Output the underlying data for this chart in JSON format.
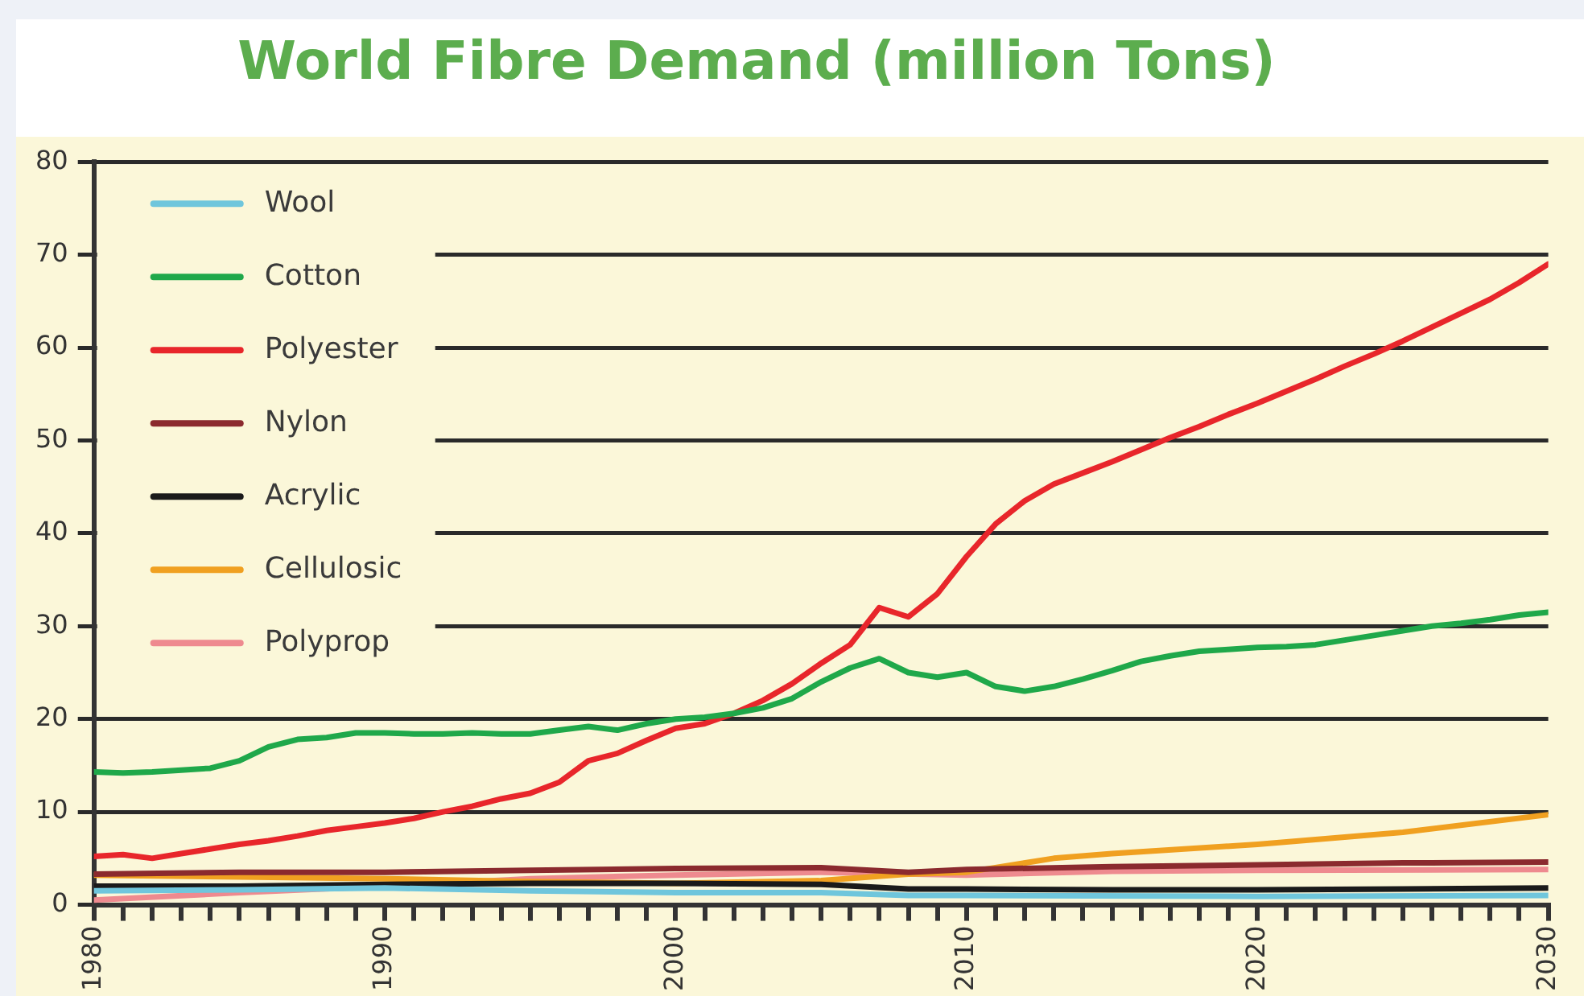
{
  "chart_data": {
    "type": "line",
    "title": "World Fibre Demand (million Tons)",
    "x": [
      1980,
      1981,
      1982,
      1983,
      1984,
      1985,
      1986,
      1987,
      1988,
      1989,
      1990,
      1991,
      1992,
      1993,
      1994,
      1995,
      1996,
      1997,
      1998,
      1999,
      2000,
      2001,
      2002,
      2003,
      2004,
      2005,
      2006,
      2007,
      2008,
      2009,
      2010,
      2011,
      2012,
      2013,
      2014,
      2015,
      2016,
      2017,
      2018,
      2019,
      2020,
      2021,
      2022,
      2023,
      2024,
      2025,
      2026,
      2027,
      2028,
      2029,
      2030
    ],
    "series": [
      {
        "name": "Wool",
        "color": "#6fc6dc",
        "x": [
          1980,
          1985,
          1990,
          1995,
          2000,
          2005,
          2008,
          2010,
          2020,
          2030
        ],
        "values": [
          1.5,
          1.6,
          1.8,
          1.5,
          1.3,
          1.3,
          1.0,
          1.0,
          0.9,
          1.0
        ]
      },
      {
        "name": "Cotton",
        "color": "#1fa84a",
        "values": [
          14.3,
          14.2,
          14.3,
          14.5,
          14.7,
          15.5,
          17,
          17.8,
          18,
          18.5,
          18.5,
          18.4,
          18.4,
          18.5,
          18.4,
          18.4,
          18.8,
          19.2,
          18.8,
          19.5,
          20,
          20.2,
          20.6,
          21.2,
          22.2,
          24,
          25.5,
          26.5,
          25,
          24.5,
          25,
          23.5,
          23,
          23.5,
          24.3,
          25.2,
          26.2,
          26.8,
          27.3,
          27.5,
          27.7,
          27.8,
          28,
          28.5,
          29,
          29.5,
          30,
          30.3,
          30.7,
          31.2,
          31.5
        ]
      },
      {
        "name": "Polyester",
        "color": "#e8262b",
        "values": [
          5.2,
          5.4,
          5,
          5.5,
          6,
          6.5,
          6.9,
          7.4,
          8,
          8.4,
          8.8,
          9.3,
          10,
          10.6,
          11.4,
          12,
          13.2,
          15.5,
          16.3,
          17.7,
          19,
          19.5,
          20.6,
          22,
          23.8,
          26,
          28,
          32,
          31,
          33.5,
          37.5,
          41,
          43.5,
          45.3,
          46.5,
          47.7,
          49,
          50.3,
          51.5,
          52.8,
          54,
          55.3,
          56.6,
          58,
          59.3,
          60.7,
          62.2,
          63.7,
          65.2,
          67,
          69
        ]
      },
      {
        "name": "Nylon",
        "color": "#8b2a2e",
        "x": [
          1980,
          1985,
          1990,
          1995,
          2000,
          2005,
          2008,
          2010,
          2015,
          2020,
          2025,
          2030
        ],
        "values": [
          3.3,
          3.5,
          3.5,
          3.7,
          3.9,
          4.0,
          3.5,
          3.8,
          4.1,
          4.3,
          4.5,
          4.6
        ]
      },
      {
        "name": "Acrylic",
        "color": "#1a1a1a",
        "x": [
          1980,
          1985,
          1990,
          1995,
          2000,
          2005,
          2008,
          2010,
          2015,
          2020,
          2025,
          2030
        ],
        "values": [
          2.0,
          2.0,
          2.2,
          2.3,
          2.3,
          2.2,
          1.7,
          1.7,
          1.6,
          1.6,
          1.7,
          1.8
        ]
      },
      {
        "name": "Cellulosic",
        "color": "#f0a020",
        "x": [
          1980,
          1985,
          1990,
          1995,
          2000,
          2005,
          2008,
          2010,
          2013,
          2015,
          2020,
          2025,
          2030
        ],
        "values": [
          3.2,
          3.0,
          2.8,
          2.5,
          2.3,
          2.6,
          3.3,
          3.5,
          5,
          5.5,
          6.5,
          7.8,
          9.7
        ]
      },
      {
        "name": "Polyprop",
        "color": "#ee8a8f",
        "x": [
          1980,
          1985,
          1990,
          1995,
          2000,
          2005,
          2010,
          2015,
          2020,
          2030
        ],
        "values": [
          0.5,
          1.3,
          2.0,
          2.8,
          3.2,
          3.5,
          3.2,
          3.6,
          3.7,
          3.8
        ]
      }
    ],
    "xlim": [
      1980,
      2030
    ],
    "xticks": [
      1980,
      {
        "value": 1981,
        "label": null
      },
      {
        "value": 1982,
        "label": null
      },
      {
        "value": 1983,
        "label": null
      },
      {
        "value": 1984,
        "label": null
      },
      {
        "value": 1985,
        "label": null
      },
      {
        "value": 1986,
        "label": null
      },
      {
        "value": 1987,
        "label": null
      },
      {
        "value": 1988,
        "label": null
      },
      {
        "value": 1989,
        "label": null
      },
      1990,
      {
        "value": 1991,
        "label": null
      },
      {
        "value": 1992,
        "label": null
      },
      {
        "value": 1993,
        "label": null
      },
      {
        "value": 1994,
        "label": null
      },
      {
        "value": 1995,
        "label": null
      },
      {
        "value": 1996,
        "label": null
      },
      {
        "value": 1997,
        "label": null
      },
      {
        "value": 1998,
        "label": null
      },
      {
        "value": 1999,
        "label": null
      },
      2000,
      {
        "value": 2001,
        "label": null
      },
      {
        "value": 2002,
        "label": null
      },
      {
        "value": 2003,
        "label": null
      },
      {
        "value": 2004,
        "label": null
      },
      {
        "value": 2005,
        "label": null
      },
      {
        "value": 2006,
        "label": null
      },
      {
        "value": 2007,
        "label": null
      },
      {
        "value": 2008,
        "label": null
      },
      {
        "value": 2009,
        "label": null
      },
      2010,
      {
        "value": 2011,
        "label": null
      },
      {
        "value": 2012,
        "label": null
      },
      {
        "value": 2013,
        "label": null
      },
      {
        "value": 2014,
        "label": null
      },
      {
        "value": 2015,
        "label": null
      },
      {
        "value": 2016,
        "label": null
      },
      {
        "value": 2017,
        "label": null
      },
      {
        "value": 2018,
        "label": null
      },
      {
        "value": 2019,
        "label": null
      },
      2020,
      {
        "value": 2021,
        "label": null
      },
      {
        "value": 2022,
        "label": null
      },
      {
        "value": 2023,
        "label": null
      },
      {
        "value": 2024,
        "label": null
      },
      {
        "value": 2025,
        "label": null
      },
      {
        "value": 2026,
        "label": null
      },
      {
        "value": 2027,
        "label": null
      },
      {
        "value": 2028,
        "label": null
      },
      {
        "value": 2029,
        "label": null
      },
      2030
    ],
    "ylim": [
      0,
      80
    ],
    "yticks": [
      0,
      10,
      20,
      30,
      40,
      50,
      60,
      70,
      80
    ],
    "grid": "y",
    "legend": "top left",
    "marker": "none",
    "line_style": "solid"
  }
}
